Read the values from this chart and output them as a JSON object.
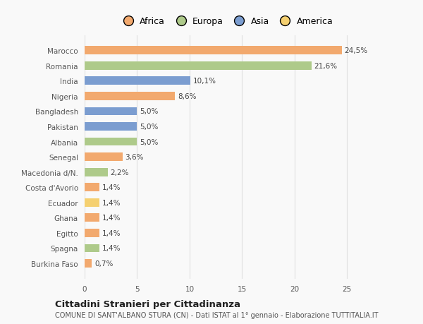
{
  "countries": [
    "Burkina Faso",
    "Spagna",
    "Egitto",
    "Ghana",
    "Ecuador",
    "Costa d'Avorio",
    "Macedonia d/N.",
    "Senegal",
    "Albania",
    "Pakistan",
    "Bangladesh",
    "Nigeria",
    "India",
    "Romania",
    "Marocco"
  ],
  "values": [
    0.7,
    1.4,
    1.4,
    1.4,
    1.4,
    1.4,
    2.2,
    3.6,
    5.0,
    5.0,
    5.0,
    8.6,
    10.1,
    21.6,
    24.5
  ],
  "continents": [
    "Africa",
    "Europa",
    "Africa",
    "Africa",
    "America",
    "Africa",
    "Europa",
    "Africa",
    "Europa",
    "Asia",
    "Asia",
    "Africa",
    "Asia",
    "Europa",
    "Africa"
  ],
  "labels": [
    "0,7%",
    "1,4%",
    "1,4%",
    "1,4%",
    "1,4%",
    "1,4%",
    "2,2%",
    "3,6%",
    "5,0%",
    "5,0%",
    "5,0%",
    "8,6%",
    "10,1%",
    "21,6%",
    "24,5%"
  ],
  "continent_colors": {
    "Africa": "#F2A96E",
    "Europa": "#AECA8A",
    "Asia": "#7B9DD0",
    "America": "#F5D070"
  },
  "legend_order": [
    "Africa",
    "Europa",
    "Asia",
    "America"
  ],
  "legend_colors": [
    "#F2A96E",
    "#AECA8A",
    "#7B9DD0",
    "#F5D070"
  ],
  "xlim": [
    0,
    27
  ],
  "xticks": [
    0,
    5,
    10,
    15,
    20,
    25
  ],
  "title": "Cittadini Stranieri per Cittadinanza",
  "subtitle": "COMUNE DI SANT'ALBANO STURA (CN) - Dati ISTAT al 1° gennaio - Elaborazione TUTTITALIA.IT",
  "bg_color": "#f9f9f9",
  "grid_color": "#e0e0e0",
  "label_fontsize": 7.5,
  "value_fontsize": 7.5
}
